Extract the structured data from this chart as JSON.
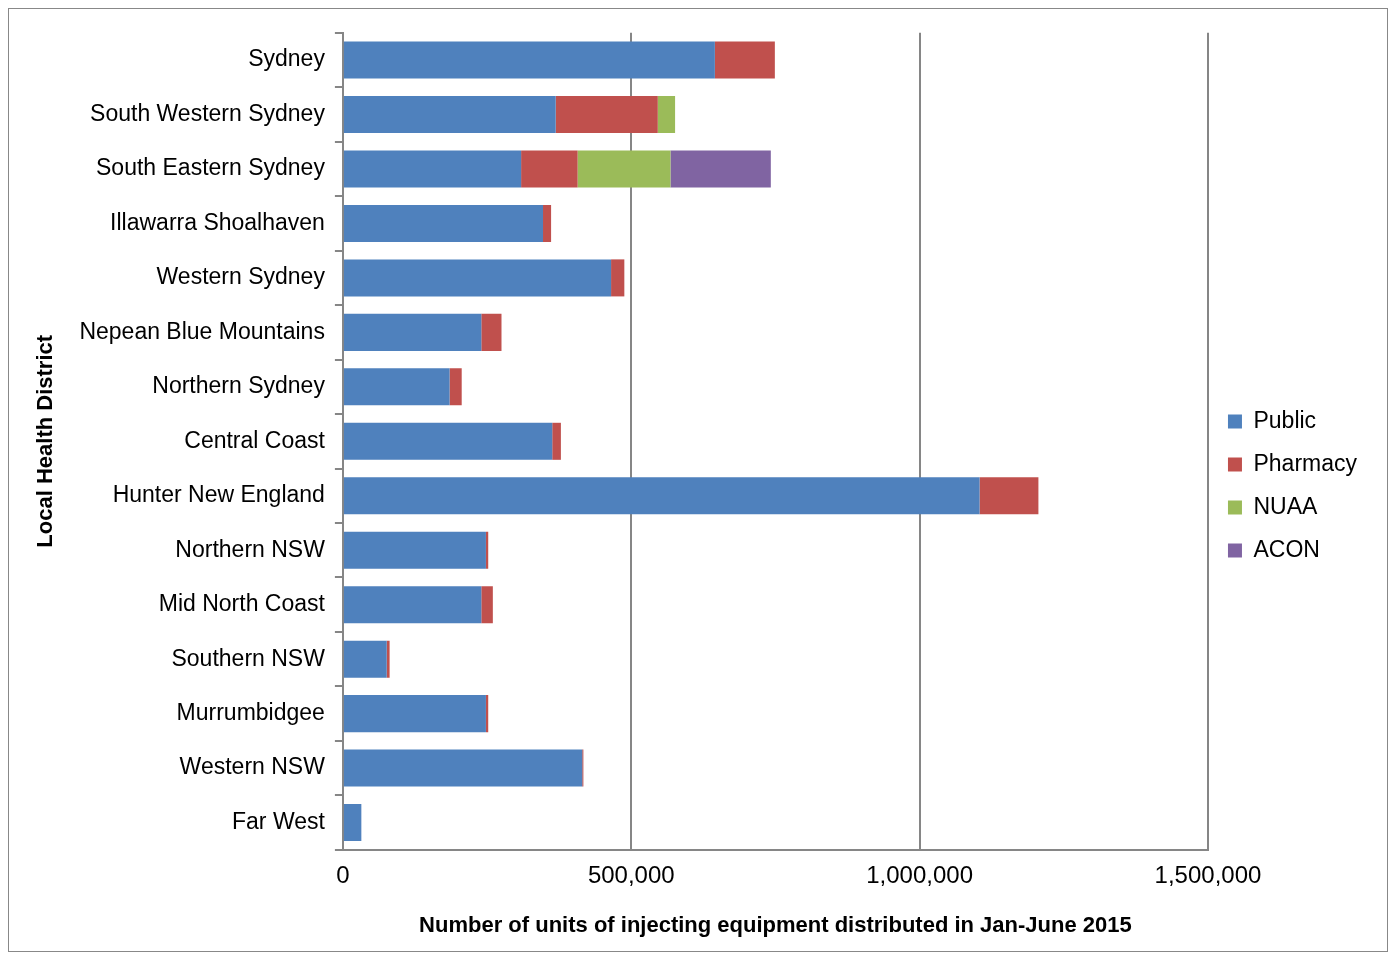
{
  "chart_data": {
    "type": "bar",
    "orientation": "horizontal",
    "stacked": true,
    "xlabel": "Number of units of injecting equipment distributed in Jan-June 2015",
    "ylabel": "Local Health District",
    "categories": [
      "Sydney",
      "South Western Sydney",
      "South Eastern Sydney",
      "Illawarra Shoalhaven",
      "Western Sydney",
      "Nepean Blue Mountains",
      "Northern Sydney",
      "Central Coast",
      "Hunter New England",
      "Northern NSW",
      "Mid North Coast",
      "Southern NSW",
      "Murrumbidgee",
      "Western NSW",
      "Far West"
    ],
    "series": [
      {
        "name": "Public",
        "color": "#4f81bd",
        "values": [
          645000,
          369000,
          309000,
          347000,
          465000,
          240000,
          185000,
          363000,
          1104000,
          248000,
          240000,
          76000,
          248000,
          415000,
          32000
        ]
      },
      {
        "name": "Pharmacy",
        "color": "#c0504d",
        "values": [
          104000,
          177000,
          98000,
          14000,
          23000,
          35000,
          21000,
          15000,
          102000,
          4000,
          20000,
          5000,
          4000,
          2000,
          0
        ]
      },
      {
        "name": "NUAA",
        "color": "#9bbb59",
        "values": [
          0,
          30000,
          161000,
          0,
          0,
          0,
          0,
          0,
          0,
          0,
          0,
          0,
          0,
          0,
          0
        ]
      },
      {
        "name": "ACON",
        "color": "#8064a2",
        "values": [
          0,
          0,
          174000,
          0,
          0,
          0,
          0,
          0,
          0,
          0,
          0,
          0,
          0,
          0,
          0
        ]
      }
    ],
    "xlim": [
      0,
      1500000
    ],
    "xticks": [
      0,
      {
        "value": 500000,
        "label": "500,000"
      },
      {
        "value": 1000000,
        "label": "1,000,000"
      },
      {
        "value": 1500000,
        "label": "1,500,000"
      }
    ],
    "grid": "x",
    "legend": "right"
  }
}
